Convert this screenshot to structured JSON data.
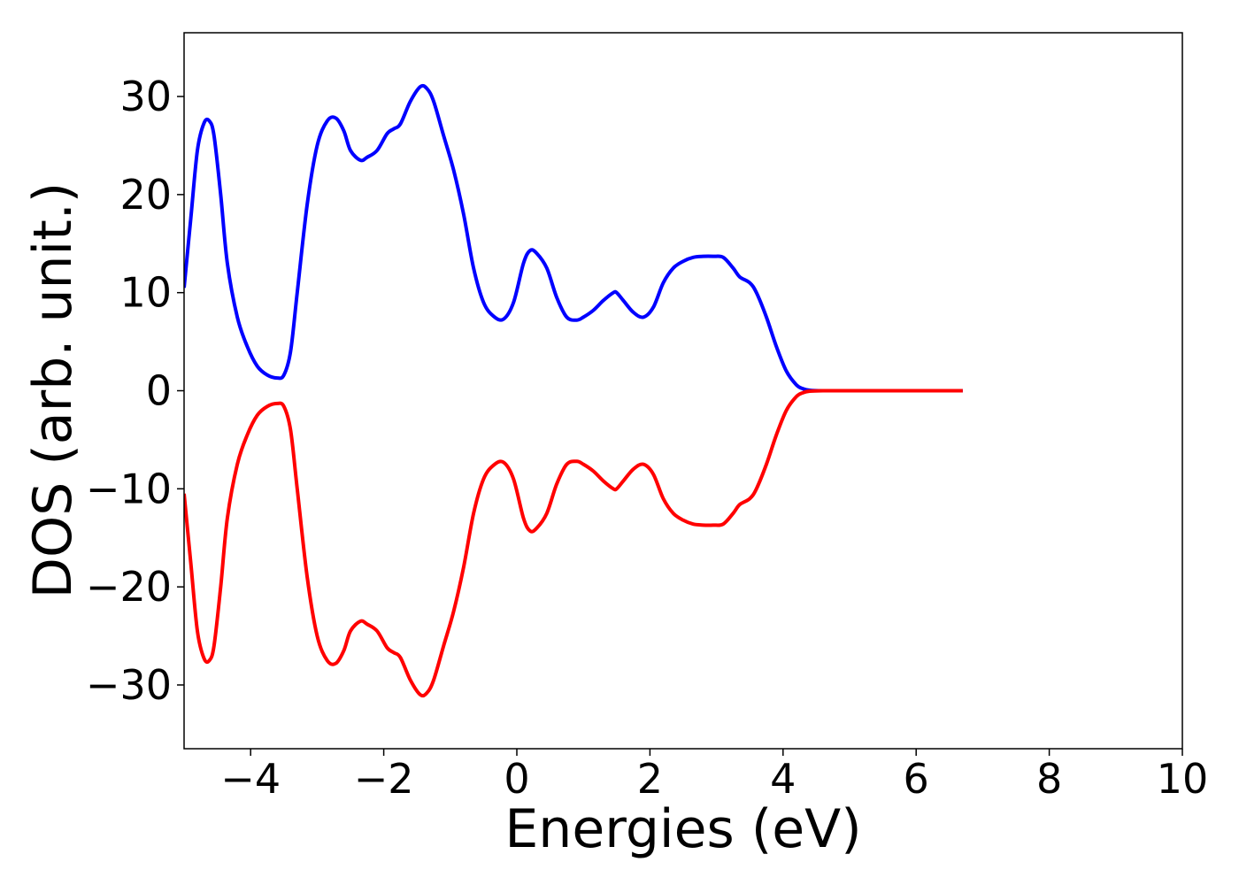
{
  "chart_data": {
    "type": "line",
    "xlabel": "Energies (eV)",
    "ylabel": "DOS (arb. unit.)",
    "xlim": [
      -5,
      10
    ],
    "ylim": [
      -36.5,
      36.5
    ],
    "xticks": [
      -4,
      -2,
      0,
      2,
      4,
      6,
      8,
      10
    ],
    "yticks": [
      -30,
      -20,
      -10,
      0,
      10,
      20,
      30
    ],
    "xtick_labels": [
      "−4",
      "−2",
      "0",
      "2",
      "4",
      "6",
      "8",
      "10"
    ],
    "ytick_labels": [
      "−30",
      "−20",
      "−10",
      "0",
      "10",
      "20",
      "30"
    ],
    "grid": false,
    "colors": {
      "up": "#0000ff",
      "down": "#ff0000"
    },
    "x": [
      -5.0,
      -4.9,
      -4.8,
      -4.7,
      -4.62,
      -4.55,
      -4.45,
      -4.35,
      -4.2,
      -4.05,
      -3.9,
      -3.75,
      -3.6,
      -3.5,
      -3.4,
      -3.3,
      -3.15,
      -3.0,
      -2.85,
      -2.72,
      -2.6,
      -2.5,
      -2.35,
      -2.25,
      -2.1,
      -1.95,
      -1.85,
      -1.75,
      -1.6,
      -1.45,
      -1.35,
      -1.25,
      -1.1,
      -0.95,
      -0.8,
      -0.65,
      -0.5,
      -0.35,
      -0.2,
      -0.05,
      0.1,
      0.2,
      0.3,
      0.45,
      0.6,
      0.75,
      0.9,
      1.0,
      1.15,
      1.3,
      1.45,
      1.5,
      1.6,
      1.75,
      1.9,
      2.05,
      2.2,
      2.35,
      2.5,
      2.65,
      2.8,
      2.95,
      3.1,
      3.25,
      3.35,
      3.5,
      3.6,
      3.75,
      3.9,
      4.05,
      4.2,
      4.3,
      4.4,
      4.6,
      5.0,
      6.0,
      6.7
    ],
    "series": [
      {
        "values": [
          10.5,
          17.5,
          24.5,
          27.3,
          27.5,
          26.0,
          20.0,
          13.0,
          7.5,
          4.5,
          2.5,
          1.6,
          1.3,
          1.6,
          4.0,
          10.0,
          19.0,
          25.0,
          27.5,
          27.8,
          26.5,
          24.5,
          23.5,
          23.8,
          24.5,
          26.2,
          26.7,
          27.2,
          29.5,
          31.0,
          30.8,
          29.5,
          26.0,
          22.5,
          18.0,
          12.5,
          9.0,
          7.6,
          7.3,
          9.0,
          13.0,
          14.3,
          14.0,
          12.5,
          9.5,
          7.5,
          7.2,
          7.5,
          8.2,
          9.2,
          10.0,
          10.0,
          9.2,
          8.0,
          7.5,
          8.5,
          11.0,
          12.5,
          13.2,
          13.6,
          13.7,
          13.7,
          13.6,
          12.5,
          11.6,
          11.0,
          10.0,
          7.5,
          4.5,
          2.0,
          0.6,
          0.2,
          0.05,
          0.0,
          0.0,
          0.0,
          0.0
        ]
      },
      {
        "values": [
          -10.5,
          -17.5,
          -24.5,
          -27.3,
          -27.5,
          -26.0,
          -20.0,
          -13.0,
          -7.5,
          -4.5,
          -2.5,
          -1.6,
          -1.3,
          -1.6,
          -4.0,
          -10.0,
          -19.0,
          -25.0,
          -27.5,
          -27.8,
          -26.5,
          -24.5,
          -23.5,
          -23.8,
          -24.5,
          -26.2,
          -26.7,
          -27.2,
          -29.5,
          -31.0,
          -30.8,
          -29.5,
          -26.0,
          -22.5,
          -18.0,
          -12.5,
          -9.0,
          -7.6,
          -7.3,
          -9.0,
          -13.0,
          -14.3,
          -14.0,
          -12.5,
          -9.5,
          -7.5,
          -7.2,
          -7.5,
          -8.2,
          -9.2,
          -10.0,
          -10.0,
          -9.2,
          -8.0,
          -7.5,
          -8.5,
          -11.0,
          -12.5,
          -13.2,
          -13.6,
          -13.7,
          -13.7,
          -13.6,
          -12.5,
          -11.6,
          -11.0,
          -10.0,
          -7.5,
          -4.5,
          -2.0,
          -0.6,
          -0.2,
          -0.05,
          0.0,
          0.0,
          0.0,
          0.0
        ]
      }
    ]
  }
}
